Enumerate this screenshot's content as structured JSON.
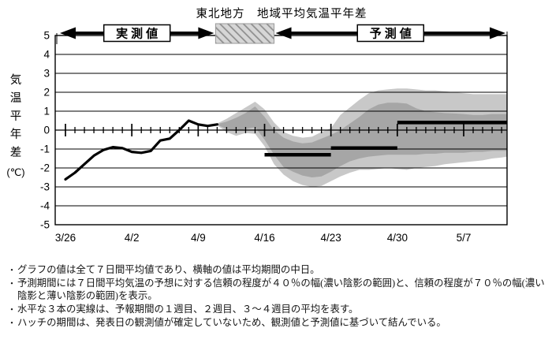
{
  "title": "東北地方　地域平均気温平年差",
  "annotations": {
    "observed_label": "実測値",
    "forecast_label": "予測値"
  },
  "y_axis": {
    "title_chars": "気温平年差",
    "unit": "(℃)",
    "ticks": [
      5,
      4,
      3,
      2,
      1,
      0,
      -1,
      -2,
      -3,
      -4,
      -5
    ],
    "min": -5,
    "max": 5
  },
  "x_axis": {
    "tick_labels": [
      "3/26",
      "4/2",
      "4/9",
      "4/16",
      "4/23",
      "4/30",
      "5/7"
    ],
    "start_date": "3/26",
    "end_date": "5/12"
  },
  "chart_data": {
    "type": "line",
    "title": "東北地方　地域平均気温平年差",
    "ylabel": "気温平年差(℃)",
    "ylim": [
      -5,
      5
    ],
    "grid": "horizontal",
    "observed": {
      "name": "実測値(7日間平均)",
      "dates": [
        "3/26",
        "3/27",
        "3/28",
        "3/29",
        "3/30",
        "3/31",
        "4/1",
        "4/2",
        "4/3",
        "4/4",
        "4/5",
        "4/6",
        "4/7",
        "4/8",
        "4/9",
        "4/10",
        "4/11"
      ],
      "values": [
        -2.6,
        -2.25,
        -1.8,
        -1.35,
        -1.05,
        -0.9,
        -0.95,
        -1.15,
        -1.2,
        -1.1,
        -0.55,
        -0.45,
        0.0,
        0.5,
        0.3,
        0.22,
        0.3
      ]
    },
    "forecast": {
      "name": "予測値(信頼幅)",
      "dates": [
        "4/11",
        "4/12",
        "4/13",
        "4/14",
        "4/15",
        "4/16",
        "4/17",
        "4/18",
        "4/19",
        "4/20",
        "4/21",
        "4/22",
        "4/23",
        "4/24",
        "4/25",
        "4/26",
        "4/27",
        "4/28",
        "4/29",
        "4/30",
        "5/1",
        "5/2",
        "5/3",
        "5/4",
        "5/5",
        "5/6",
        "5/7",
        "5/8",
        "5/9",
        "5/10",
        "5/11",
        "5/12"
      ],
      "upper70": [
        0.35,
        0.6,
        0.9,
        1.2,
        1.5,
        1.1,
        0.4,
        -0.1,
        -0.3,
        -0.4,
        -0.35,
        -0.1,
        0.1,
        0.8,
        1.2,
        1.6,
        1.95,
        2.1,
        2.15,
        2.2,
        2.2,
        2.15,
        2.1,
        2.1,
        2.05,
        2.0,
        1.95,
        1.9,
        1.9,
        1.9,
        1.9,
        1.9
      ],
      "upper40": [
        0.32,
        0.45,
        0.65,
        0.9,
        1.25,
        0.7,
        0.0,
        -0.4,
        -0.6,
        -0.7,
        -0.65,
        -0.45,
        -0.25,
        0.0,
        0.35,
        0.7,
        1.1,
        1.35,
        1.45,
        1.45,
        1.4,
        1.15,
        1.0,
        0.95,
        0.9,
        0.88,
        0.85,
        0.8,
        0.8,
        0.85,
        0.85,
        0.85
      ],
      "lower40": [
        0.28,
        0.05,
        -0.05,
        0.05,
        0.15,
        -0.5,
        -1.3,
        -1.95,
        -2.2,
        -2.4,
        -2.5,
        -2.45,
        -2.2,
        -1.9,
        -1.65,
        -1.5,
        -1.4,
        -1.35,
        -1.3,
        -1.3,
        -1.3,
        -1.3,
        -1.25,
        -1.25,
        -1.2,
        -1.2,
        -1.2,
        -1.15,
        -1.15,
        -1.1,
        -1.1,
        -1.1
      ],
      "lower70": [
        0.25,
        -0.1,
        -0.3,
        -0.15,
        -0.2,
        -0.85,
        -1.8,
        -2.35,
        -2.7,
        -2.9,
        -3.0,
        -2.95,
        -2.7,
        -2.45,
        -2.25,
        -2.1,
        -2.1,
        -2.05,
        -2.0,
        -2.05,
        -2.1,
        -2.0,
        -1.95,
        -1.9,
        -1.8,
        -1.75,
        -1.7,
        -1.65,
        -1.6,
        -1.5,
        -1.45,
        -1.4
      ]
    },
    "weekly_means": [
      {
        "label": "1週目",
        "start": "4/16",
        "end": "4/23",
        "value": -1.3
      },
      {
        "label": "2週目",
        "start": "4/23",
        "end": "4/30",
        "value": -0.95
      },
      {
        "label": "3～4週目",
        "start": "4/30",
        "end": "5/12",
        "value": 0.4
      }
    ],
    "hatch_period": {
      "start": "4/11",
      "end": "4/17"
    },
    "colors": {
      "band40": "#a6a6a6",
      "band70": "#c8c8c8",
      "line": "#000000",
      "hatch_bg": "#d6d6d6",
      "hatch_stripe": "#8f8f8f"
    }
  },
  "footnotes": [
    "グラフの値は全て７日間平均値であり、横軸の値は平均期間の中日。",
    "予測期間には７日間平均気温の予想に対する信頼の程度が４０％の幅(濃い陰影の範囲)と、信頼の程度が７０％の幅(濃い陰影と薄い陰影の範囲)を表示。",
    "水平な３本の実線は、予報期間の１週目、２週目、３～４週目の平均を表す。",
    "ハッチの期間は、発表日の観測値が確定していないため、観測値と予測値に基づいて結んでいる。"
  ]
}
